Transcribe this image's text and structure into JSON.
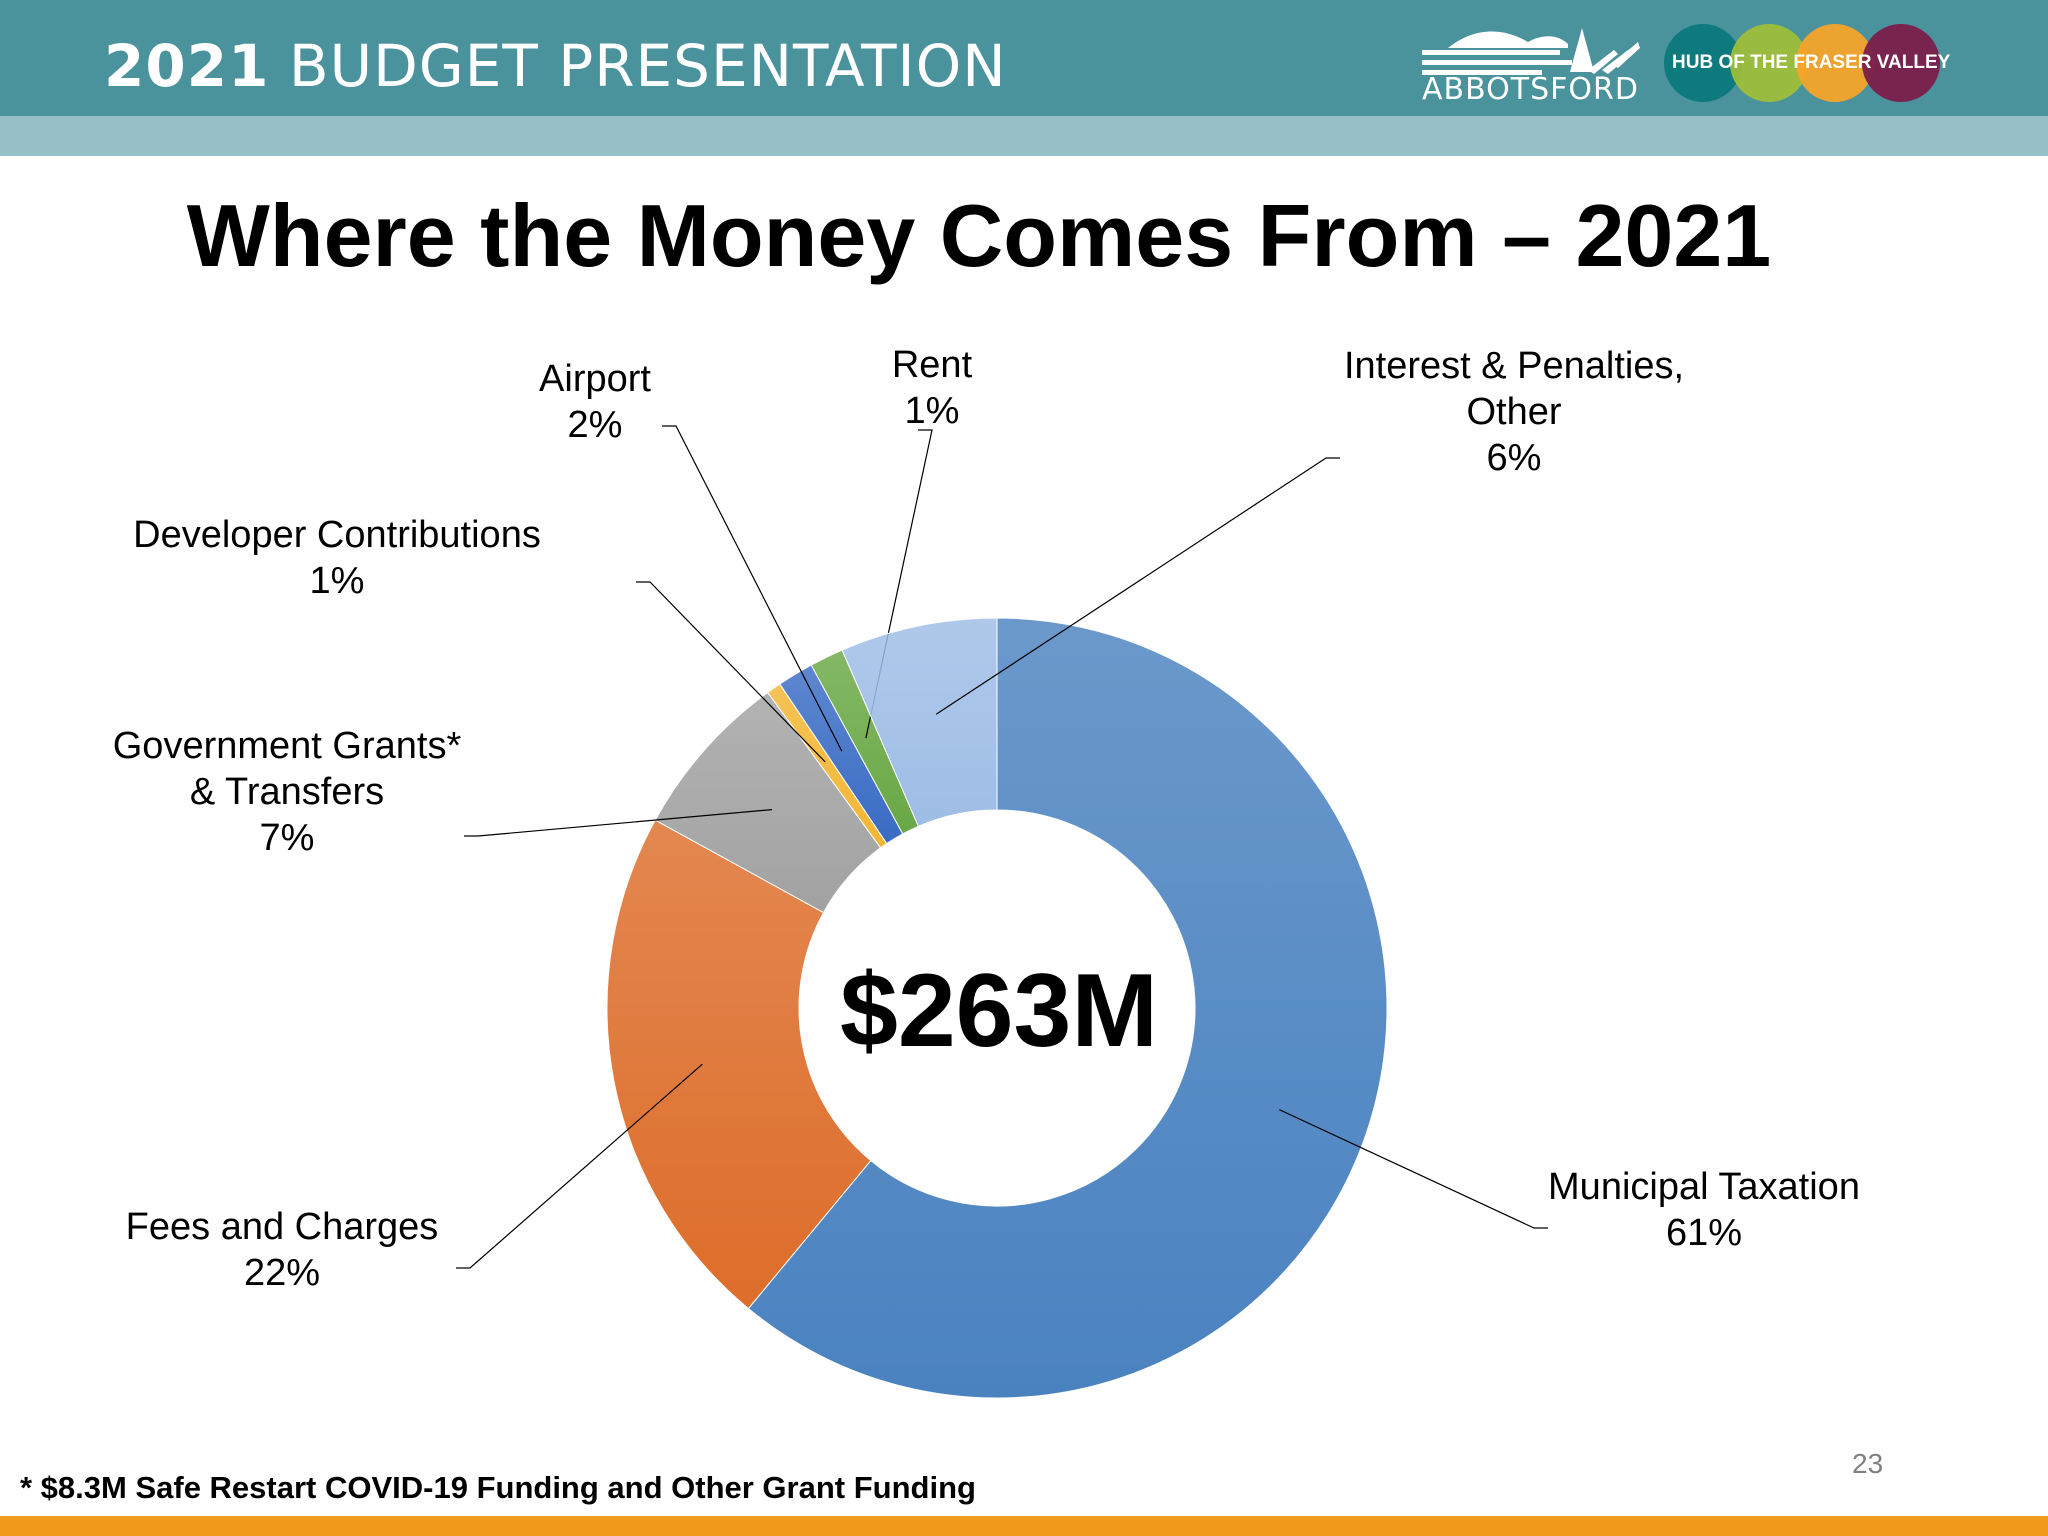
{
  "header": {
    "title_bold": "2021",
    "title_rest": "BUDGET PRESENTATION",
    "logo_text": "ABBOTSFORD",
    "hub_text": "HUB OF THE FRASER VALLEY",
    "hub_colors": [
      "#0e7a7e",
      "#9dbd3a",
      "#f5a32a",
      "#7b1d4b"
    ],
    "bar_color": "#4a939c",
    "strip_color": "#96bfc8"
  },
  "slide": {
    "title": "Where the Money Comes From – 2021",
    "footnote": "* $8.3M Safe Restart COVID-19 Funding and Other Grant Funding",
    "page_number": "23"
  },
  "chart_data": {
    "type": "pie",
    "variant": "donut",
    "center_label": "$263M",
    "slices": [
      {
        "name": "Municipal Taxation",
        "label_lines": [
          "Municipal Taxation"
        ],
        "value": 61,
        "value_label": "61%",
        "color": "#4a82c0"
      },
      {
        "name": "Fees and Charges",
        "label_lines": [
          "Fees and Charges"
        ],
        "value": 22,
        "value_label": "22%",
        "color": "#dd6d2a"
      },
      {
        "name": "Government Grants* & Transfers",
        "label_lines": [
          "Government Grants*",
          "& Transfers"
        ],
        "value": 7,
        "value_label": "7%",
        "color": "#a2a2a2"
      },
      {
        "name": "Developer Contributions",
        "label_lines": [
          "Developer Contributions"
        ],
        "value": 0.6,
        "value_label": "1%",
        "color": "#f2b632"
      },
      {
        "name": "Airport",
        "label_lines": [
          "Airport"
        ],
        "value": 1.5,
        "value_label": "2%",
        "color": "#3a6cc4"
      },
      {
        "name": "Rent",
        "label_lines": [
          "Rent"
        ],
        "value": 1.4,
        "value_label": "1%",
        "color": "#69a845"
      },
      {
        "name": "Interest & Penalties, Other",
        "label_lines": [
          "Interest & Penalties,",
          "Other"
        ],
        "value": 6.5,
        "value_label": "6%",
        "color": "#9ebde6"
      }
    ],
    "legend": "callout labels around chart",
    "start_angle": "12 o'clock, clockwise"
  }
}
